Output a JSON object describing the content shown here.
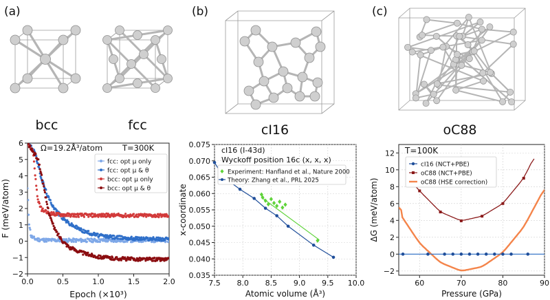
{
  "panels": {
    "a": {
      "letter": "(a)",
      "structures": [
        "bcc",
        "fcc"
      ]
    },
    "b": {
      "letter": "(b)",
      "structures": [
        "cI16"
      ]
    },
    "c": {
      "letter": "(c)",
      "structures": [
        "oC88"
      ]
    }
  },
  "colors": {
    "fcc_mu_only": "#7fa8e8",
    "fcc_mu_theta": "#2f6fc9",
    "bcc_mu_only": "#d23a3a",
    "bcc_mu_theta": "#8b0d10",
    "experiment": "#5fd33a",
    "theory": "#1f4e9a",
    "ci16": "#1f4e9a",
    "oc88": "#8b1a1a",
    "oc88_hse": "#f4844a",
    "zero_line": "#3b78c8",
    "atom": "#c8c8c8",
    "bond": "#b0b0b0",
    "box": "#9a9a9a"
  },
  "chart_data": [
    {
      "type": "line",
      "panel": "a",
      "annotation_left": "Ω=19.2Å³/atom",
      "annotation_right": "T=300K",
      "xlabel": "Epoch (×10³)",
      "ylabel": "F (meV/atom)",
      "xlim": [
        0,
        2.0
      ],
      "ylim": [
        -2,
        6
      ],
      "xticks": [
        "0.0",
        "0.5",
        "1.0",
        "1.5",
        "2.0"
      ],
      "yticks": [
        "−2",
        "−1",
        "0",
        "1",
        "2",
        "3",
        "4",
        "5",
        "6"
      ],
      "legend_position": "upper right",
      "series": [
        {
          "name": "fcc: opt μ only",
          "key": "fcc_mu_only",
          "x": [
            0,
            0.02,
            0.05,
            0.1,
            0.15,
            0.2,
            0.3,
            0.5,
            1.0,
            1.5,
            2.0
          ],
          "y": [
            3.2,
            1.2,
            0.3,
            0.15,
            0.1,
            0.08,
            0.06,
            0.05,
            0.05,
            0.05,
            0.05
          ]
        },
        {
          "name": "fcc: opt μ & θ",
          "key": "fcc_mu_theta",
          "x": [
            0,
            0.1,
            0.2,
            0.3,
            0.4,
            0.5,
            0.6,
            0.8,
            1.0,
            1.2,
            1.5,
            2.0
          ],
          "y": [
            6,
            5.5,
            3.8,
            2.6,
            1.9,
            1.4,
            1.05,
            0.6,
            0.35,
            0.25,
            0.17,
            0.12
          ]
        },
        {
          "name": "bcc: opt μ only",
          "key": "bcc_mu_only",
          "x": [
            0,
            0.08,
            0.12,
            0.15,
            0.2,
            0.25,
            0.3,
            0.4,
            0.6,
            1.0,
            1.5,
            2.0
          ],
          "y": [
            6,
            5.5,
            3.5,
            2.4,
            1.95,
            1.8,
            1.72,
            1.65,
            1.6,
            1.58,
            1.57,
            1.57
          ]
        },
        {
          "name": "bcc: opt μ & θ",
          "key": "bcc_mu_theta",
          "x": [
            0,
            0.15,
            0.2,
            0.25,
            0.3,
            0.35,
            0.4,
            0.5,
            0.6,
            0.8,
            1.0,
            1.2,
            1.5,
            2.0
          ],
          "y": [
            6,
            5.0,
            4.0,
            2.8,
            1.8,
            1.1,
            0.6,
            0.0,
            -0.4,
            -0.75,
            -0.95,
            -1.05,
            -1.1,
            -1.12
          ]
        }
      ]
    },
    {
      "type": "scatter",
      "panel": "b",
      "title_line1": "cI16 (I-43d)",
      "title_line2": "Wyckoff position 16c (x, x, x)",
      "xlabel": "Atomic volume (Å³)",
      "ylabel": "x-coordinate",
      "xlim": [
        7.5,
        10.0
      ],
      "ylim": [
        0.035,
        0.075
      ],
      "xticks": [
        "7.5",
        "8.0",
        "8.5",
        "9.0",
        "9.5",
        "10.0"
      ],
      "yticks": [
        "0.035",
        "0.040",
        "0.045",
        "0.050",
        "0.055",
        "0.060",
        "0.065",
        "0.070",
        "0.075"
      ],
      "legend_position": "upper right",
      "series": [
        {
          "name": "Experiment: Hanfland et al., Nature 2000",
          "key": "experiment",
          "x": [
            8.33,
            8.35,
            8.4,
            8.45,
            8.5,
            8.55,
            8.6,
            8.65,
            8.7,
            8.75,
            9.32
          ],
          "y": [
            0.0597,
            0.0588,
            0.0578,
            0.0567,
            0.0583,
            0.0571,
            0.0562,
            0.0575,
            0.0557,
            0.0566,
            0.0456
          ],
          "fit": {
            "x": [
              8.33,
              9.35
            ],
            "y": [
              0.0588,
              0.0458
            ]
          }
        },
        {
          "name": "Theory: Zhang et al., PRL 2025",
          "key": "theory",
          "x": [
            7.5,
            7.6,
            7.7,
            7.95,
            8.2,
            8.4,
            8.6,
            8.8,
            9.25,
            9.6
          ],
          "y": [
            0.0695,
            0.0667,
            0.0645,
            0.0613,
            0.0585,
            0.0555,
            0.0532,
            0.05,
            0.0442,
            0.0405
          ]
        }
      ]
    },
    {
      "type": "line",
      "panel": "c",
      "annotation": "T=100K",
      "xlabel": "Pressure (GPa)",
      "ylabel": "ΔG (meV/atom)",
      "xlim": [
        55,
        90
      ],
      "ylim": [
        -2.5,
        13
      ],
      "xticks": [
        "60",
        "70",
        "80",
        "90"
      ],
      "yticks": [
        "−2",
        "0",
        "2",
        "4",
        "6",
        "8",
        "10",
        "12"
      ],
      "legend_position": "upper center",
      "series": [
        {
          "name": "cI16 (NCT+PBE)",
          "key": "ci16",
          "x": [
            56,
            62,
            66,
            68,
            70,
            72,
            74,
            76,
            78,
            80,
            82,
            86
          ],
          "y": [
            0,
            0,
            0,
            0,
            0,
            0,
            0,
            0,
            0,
            0,
            0,
            0
          ]
        },
        {
          "name": "oC88 (NCT+PBE)",
          "key": "oc88",
          "x": [
            60,
            65,
            70,
            75,
            80,
            85
          ],
          "y": [
            7.5,
            5.0,
            3.95,
            4.5,
            6.0,
            9.0
          ]
        },
        {
          "name": "oC88 (HSE correction)",
          "key": "oc88_hse",
          "x": [
            55,
            60,
            65,
            70,
            75,
            80,
            85,
            90
          ],
          "y": [
            5.0,
            1.3,
            -1.0,
            -2.0,
            -1.5,
            0.2,
            3.2,
            7.8
          ]
        }
      ]
    }
  ]
}
